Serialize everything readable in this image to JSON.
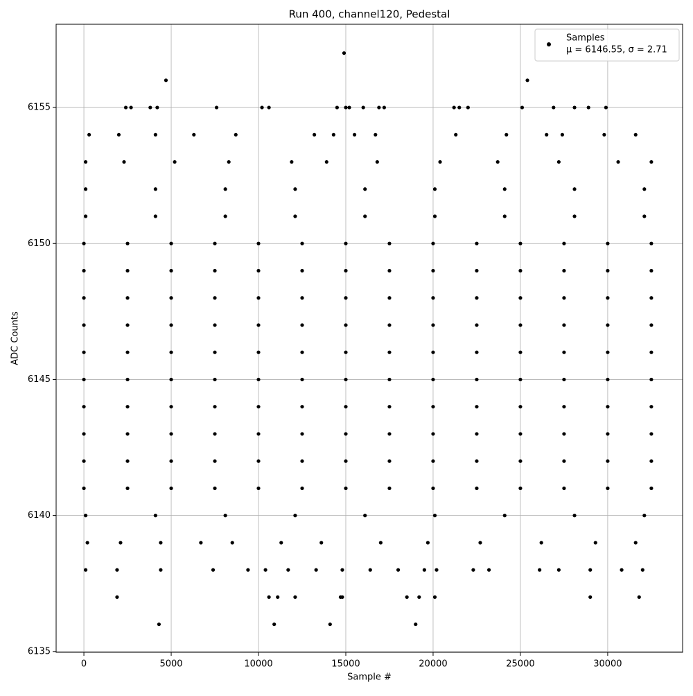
{
  "chart_data": {
    "type": "scatter",
    "title": "Run 400, channel120, Pedestal",
    "x_label": "Sample #",
    "y_label": "ADC Counts",
    "annotation": "μ = 6146.55, σ = 2.71",
    "xlim": [
      -1590,
      34290
    ],
    "ylim": [
      6134.97,
      6158.06
    ],
    "xticks": [
      0,
      5000,
      10000,
      15000,
      20000,
      25000,
      30000
    ],
    "yticks": [
      6135,
      6140,
      6145,
      6150,
      6155
    ],
    "grid": true,
    "legend": "upper right",
    "x": [
      0,
      2500,
      5000,
      7500,
      10000,
      12500,
      15000,
      17500,
      20000,
      22500,
      25000,
      27500,
      30000,
      32500,
      0,
      2500,
      5000,
      7500,
      10000,
      12500,
      15000,
      17500,
      20000,
      22500,
      25000,
      27500,
      30000,
      32500,
      0,
      2500,
      5000,
      7500,
      10000,
      12500,
      15000,
      17500,
      20000,
      22500,
      25000,
      27500,
      30000,
      32500,
      0,
      2500,
      5000,
      7500,
      10000,
      12500,
      15000,
      17500,
      20000,
      22500,
      25000,
      27500,
      30000,
      32500,
      0,
      2500,
      5000,
      7500,
      10000,
      12500,
      15000,
      17500,
      20000,
      22500,
      25000,
      27500,
      30000,
      32500,
      0,
      2500,
      5000,
      7500,
      10000,
      12500,
      15000,
      17500,
      20000,
      22500,
      25000,
      27500,
      30000,
      32500,
      0,
      2500,
      5000,
      7500,
      10000,
      12500,
      15000,
      17500,
      20000,
      22500,
      25000,
      27500,
      30000,
      32500,
      0,
      2500,
      5000,
      7500,
      10000,
      12500,
      15000,
      17500,
      20000,
      22500,
      25000,
      27500,
      30000,
      32500,
      0,
      2500,
      5000,
      7500,
      10000,
      12500,
      15000,
      17500,
      20000,
      22500,
      25000,
      27500,
      30000,
      32500,
      0,
      2500,
      5000,
      7500,
      10000,
      12500,
      15000,
      17500,
      20000,
      22500,
      25000,
      27500,
      30000,
      32500,
      100,
      4100,
      8100,
      12100,
      16100,
      20100,
      24100,
      28100,
      32100,
      100,
      4100,
      8100,
      12100,
      16100,
      20100,
      24100,
      28100,
      32100,
      100,
      4100,
      8100,
      12100,
      16100,
      20100,
      24100,
      28100,
      32100,
      100,
      2300,
      5200,
      8300,
      11900,
      13900,
      16800,
      20400,
      23700,
      27200,
      30600,
      32500,
      200,
      2100,
      4400,
      6700,
      8500,
      11300,
      13600,
      17000,
      19700,
      22700,
      26200,
      29300,
      31600,
      300,
      2000,
      4100,
      6300,
      8700,
      13200,
      14300,
      15500,
      16700,
      21300,
      24200,
      26500,
      27400,
      29800,
      31600,
      100,
      1900,
      4400,
      7400,
      9400,
      10400,
      11700,
      13300,
      14800,
      16400,
      18000,
      19500,
      20200,
      22300,
      23200,
      26100,
      27200,
      29000,
      30800,
      32000,
      2400,
      2700,
      3800,
      4200,
      7600,
      10200,
      10600,
      14500,
      15000,
      15200,
      16000,
      16900,
      17200,
      21200,
      21500,
      22000,
      25100,
      26900,
      28100,
      28900,
      29900,
      4700,
      25400,
      14900,
      1900,
      10600,
      11100,
      12100,
      14700,
      14800,
      18500,
      19200,
      20100,
      29000,
      31800,
      4300,
      10900,
      14100,
      19000
    ],
    "series": [
      {
        "name": "Samples",
        "color": "#000000",
        "values": [
          6150,
          6150,
          6150,
          6150,
          6150,
          6150,
          6150,
          6150,
          6150,
          6150,
          6150,
          6150,
          6150,
          6150,
          6149,
          6149,
          6149,
          6149,
          6149,
          6149,
          6149,
          6149,
          6149,
          6149,
          6149,
          6149,
          6149,
          6149,
          6148,
          6148,
          6148,
          6148,
          6148,
          6148,
          6148,
          6148,
          6148,
          6148,
          6148,
          6148,
          6148,
          6148,
          6147,
          6147,
          6147,
          6147,
          6147,
          6147,
          6147,
          6147,
          6147,
          6147,
          6147,
          6147,
          6147,
          6147,
          6146,
          6146,
          6146,
          6146,
          6146,
          6146,
          6146,
          6146,
          6146,
          6146,
          6146,
          6146,
          6146,
          6146,
          6145,
          6145,
          6145,
          6145,
          6145,
          6145,
          6145,
          6145,
          6145,
          6145,
          6145,
          6145,
          6145,
          6145,
          6144,
          6144,
          6144,
          6144,
          6144,
          6144,
          6144,
          6144,
          6144,
          6144,
          6144,
          6144,
          6144,
          6144,
          6143,
          6143,
          6143,
          6143,
          6143,
          6143,
          6143,
          6143,
          6143,
          6143,
          6143,
          6143,
          6143,
          6143,
          6142,
          6142,
          6142,
          6142,
          6142,
          6142,
          6142,
          6142,
          6142,
          6142,
          6142,
          6142,
          6142,
          6142,
          6141,
          6141,
          6141,
          6141,
          6141,
          6141,
          6141,
          6141,
          6141,
          6141,
          6141,
          6141,
          6141,
          6141,
          6140,
          6140,
          6140,
          6140,
          6140,
          6140,
          6140,
          6140,
          6140,
          6151,
          6151,
          6151,
          6151,
          6151,
          6151,
          6151,
          6151,
          6151,
          6152,
          6152,
          6152,
          6152,
          6152,
          6152,
          6152,
          6152,
          6152,
          6153,
          6153,
          6153,
          6153,
          6153,
          6153,
          6153,
          6153,
          6153,
          6153,
          6153,
          6153,
          6139,
          6139,
          6139,
          6139,
          6139,
          6139,
          6139,
          6139,
          6139,
          6139,
          6139,
          6139,
          6139,
          6154,
          6154,
          6154,
          6154,
          6154,
          6154,
          6154,
          6154,
          6154,
          6154,
          6154,
          6154,
          6154,
          6154,
          6154,
          6138,
          6138,
          6138,
          6138,
          6138,
          6138,
          6138,
          6138,
          6138,
          6138,
          6138,
          6138,
          6138,
          6138,
          6138,
          6138,
          6138,
          6138,
          6138,
          6138,
          6155,
          6155,
          6155,
          6155,
          6155,
          6155,
          6155,
          6155,
          6155,
          6155,
          6155,
          6155,
          6155,
          6155,
          6155,
          6155,
          6155,
          6155,
          6155,
          6155,
          6155,
          6156,
          6156,
          6157,
          6137,
          6137,
          6137,
          6137,
          6137,
          6137,
          6137,
          6137,
          6137,
          6137,
          6137,
          6136,
          6136,
          6136,
          6136
        ]
      }
    ]
  }
}
